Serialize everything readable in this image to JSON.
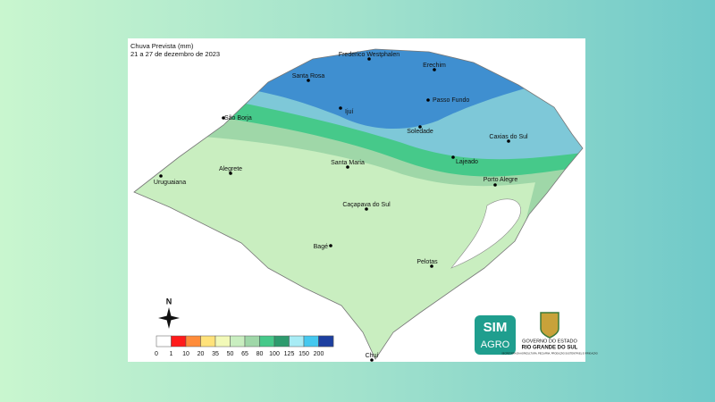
{
  "title": "Chuva Prevista (mm)",
  "subtitle": "21 a 27 de dezembro de 2023",
  "cities": [
    "Frederico Westphalen",
    "Erechim",
    "Santa Rosa",
    "Ijuí",
    "Passo Fundo",
    "São Borja",
    "Soledade",
    "Caxias do Sul",
    "Santa Maria",
    "Lajeado",
    "Alegrete",
    "Uruguaiana",
    "Porto Alegre",
    "Caçapava do Sul",
    "Bagé",
    "Pelotas",
    "Chuí"
  ],
  "north": "N",
  "legend": {
    "ticks": [
      0,
      1,
      10,
      20,
      35,
      50,
      65,
      80,
      100,
      125,
      150,
      200
    ],
    "colors": [
      "#ffffff",
      "#ff1a1a",
      "#ff8c3a",
      "#ffe27a",
      "#f2f9b8",
      "#c9eec0",
      "#9fd7a8",
      "#46c98a",
      "#2e9b6e",
      "#a8ecf5",
      "#45c8ef",
      "#2a86d6",
      "#1d3fa0"
    ]
  },
  "logos": {
    "sim": "SIM",
    "agro": "AGRO",
    "gov_line1": "GOVERNO DO ESTADO",
    "gov_line2": "RIO GRANDE DO SUL",
    "gov_line3": "SECRETARIA DA AGRICULTURA, PECUÁRIA, PRODUÇÃO SUSTENTÁVEL E IRRIGAÇÃO"
  }
}
